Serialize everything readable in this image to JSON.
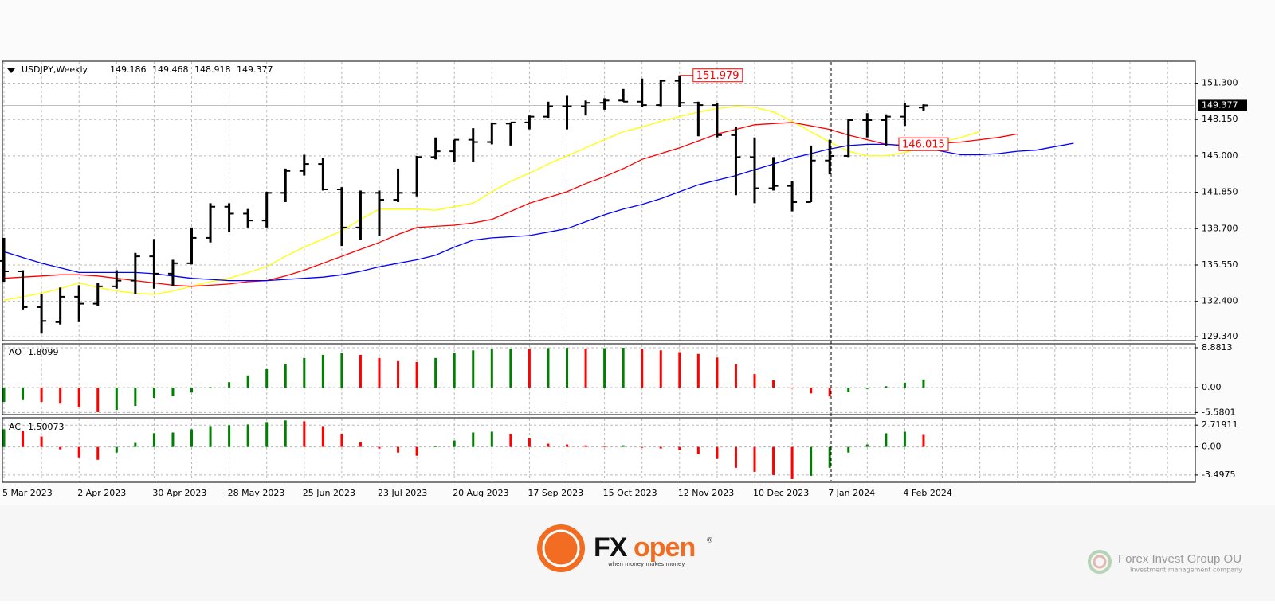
{
  "chart_data": [
    {
      "type": "ohlc",
      "title": "USDJPY,Weekly",
      "categories": [
        "5 Mar 2023",
        null,
        null,
        null,
        "2 Apr 2023",
        null,
        null,
        null,
        "30 Apr 2023",
        null,
        null,
        null,
        "28 May 2023",
        null,
        null,
        null,
        "25 Jun 2023",
        null,
        null,
        null,
        "23 Jul 2023",
        null,
        null,
        null,
        "20 Aug 2023",
        null,
        null,
        null,
        "17 Sep 2023",
        null,
        null,
        null,
        "15 Oct 2023",
        null,
        null,
        null,
        "12 Nov 2023",
        null,
        null,
        null,
        "10 Dec 2023",
        null,
        null,
        null,
        "7 Jan 2024",
        null,
        null,
        null,
        "4 Feb 2024",
        null,
        null,
        null,
        null,
        null,
        null,
        null,
        null,
        null
      ],
      "open": [
        135.9,
        135.0,
        131.9,
        130.6,
        132.8,
        132.2,
        133.7,
        134.2,
        136.3,
        134.8,
        135.7,
        137.9,
        140.6,
        140.0,
        139.4,
        141.8,
        143.7,
        144.3,
        142.1,
        138.8,
        141.8,
        141.2,
        141.8,
        144.9,
        145.4,
        146.4,
        146.2,
        147.8,
        147.9,
        148.4,
        149.3,
        149.3,
        149.6,
        149.8,
        149.7,
        149.4,
        151.5,
        149.6,
        149.4,
        146.8,
        144.9,
        142.2,
        142.4,
        141.0,
        144.6,
        145.0,
        148.1,
        148.1,
        148.4,
        149.186,
        null,
        null,
        null,
        null,
        null,
        null,
        null,
        null
      ],
      "high": [
        137.9,
        135.1,
        133.0,
        133.6,
        133.8,
        134.0,
        135.1,
        136.6,
        137.8,
        136.0,
        138.8,
        140.9,
        140.9,
        140.4,
        141.9,
        143.9,
        145.1,
        144.8,
        142.3,
        142.0,
        142.0,
        143.9,
        145.0,
        146.6,
        146.4,
        147.4,
        147.9,
        147.9,
        148.5,
        149.7,
        150.2,
        149.8,
        150.0,
        150.8,
        151.7,
        151.6,
        151.979,
        149.7,
        149.6,
        147.5,
        146.6,
        144.9,
        142.8,
        145.9,
        146.4,
        148.2,
        148.7,
        148.6,
        149.6,
        149.468,
        null,
        null,
        null,
        null,
        null,
        null,
        null,
        null
      ],
      "low": [
        134.1,
        131.7,
        129.6,
        130.4,
        130.6,
        132.0,
        133.5,
        133.0,
        133.5,
        133.7,
        135.6,
        137.5,
        138.4,
        138.8,
        138.8,
        141.0,
        143.3,
        142.0,
        137.2,
        137.7,
        138.1,
        141.0,
        141.5,
        144.7,
        144.5,
        144.5,
        146.0,
        145.9,
        147.3,
        148.3,
        147.3,
        148.5,
        149.0,
        149.7,
        149.2,
        149.3,
        149.2,
        146.7,
        146.6,
        141.6,
        140.9,
        142.0,
        140.2,
        141.0,
        143.4,
        144.9,
        146.6,
        145.9,
        147.6,
        148.918,
        null,
        null,
        null,
        null,
        null,
        null,
        null,
        null
      ],
      "close": [
        135.0,
        131.9,
        130.7,
        132.8,
        132.2,
        133.7,
        134.2,
        136.3,
        134.8,
        135.7,
        137.9,
        140.6,
        140.0,
        139.4,
        141.8,
        143.7,
        144.3,
        142.1,
        138.8,
        141.8,
        141.2,
        141.8,
        144.9,
        145.4,
        146.4,
        146.2,
        147.8,
        147.9,
        148.4,
        149.3,
        149.3,
        149.6,
        149.8,
        149.7,
        149.4,
        151.5,
        149.6,
        149.4,
        146.8,
        144.9,
        142.2,
        142.4,
        141.0,
        144.6,
        145.0,
        148.1,
        148.1,
        148.4,
        149.3,
        149.377,
        null,
        null,
        null,
        null,
        null,
        null,
        null,
        null
      ],
      "bar_color": "#000000",
      "series": [
        {
          "color": "#ffff00",
          "values": [
            132.5,
            132.8,
            133.1,
            133.5,
            134.0,
            133.6,
            133.3,
            133.1,
            133.0,
            133.3,
            133.7,
            134.1,
            134.4,
            134.9,
            135.4,
            136.3,
            137.1,
            137.8,
            138.5,
            139.5,
            140.4,
            140.4,
            140.4,
            140.3,
            140.6,
            140.9,
            141.9,
            142.8,
            143.5,
            144.3,
            145.0,
            145.7,
            146.4,
            147.1,
            147.5,
            148.0,
            148.4,
            148.8,
            149.1,
            149.3,
            149.2,
            148.8,
            148.0,
            147.1,
            146.2,
            145.4,
            145.0,
            145.0,
            145.3,
            145.7,
            146.2,
            146.6,
            147.1,
            null,
            null,
            null,
            null,
            null
          ]
        },
        {
          "color": "#ff0000",
          "values": [
            134.4,
            134.5,
            134.6,
            134.7,
            134.7,
            134.6,
            134.4,
            134.2,
            134.0,
            133.8,
            133.7,
            133.8,
            133.9,
            134.1,
            134.2,
            134.6,
            135.1,
            135.7,
            136.3,
            136.9,
            137.5,
            138.2,
            138.8,
            138.9,
            139.0,
            139.2,
            139.5,
            140.2,
            140.9,
            141.4,
            141.9,
            142.6,
            143.2,
            143.9,
            144.7,
            145.2,
            145.7,
            146.3,
            146.9,
            147.3,
            147.7,
            147.8,
            147.9,
            147.6,
            147.3,
            146.8,
            146.4,
            146.0,
            145.9,
            146.0,
            146.1,
            146.2,
            146.4,
            146.6,
            146.9,
            null,
            null,
            null
          ]
        },
        {
          "color": "#0000ff",
          "values": [
            136.7,
            136.2,
            135.7,
            135.3,
            134.9,
            134.9,
            134.9,
            134.9,
            134.8,
            134.6,
            134.4,
            134.3,
            134.2,
            134.2,
            134.2,
            134.3,
            134.4,
            134.5,
            134.7,
            135.0,
            135.4,
            135.7,
            136.0,
            136.4,
            137.1,
            137.7,
            137.9,
            138.0,
            138.1,
            138.4,
            138.7,
            139.3,
            139.9,
            140.4,
            140.8,
            141.3,
            141.9,
            142.5,
            142.9,
            143.3,
            143.8,
            144.3,
            144.8,
            145.2,
            145.6,
            145.9,
            146.0,
            146.0,
            145.9,
            145.7,
            145.4,
            145.1,
            145.1,
            145.2,
            145.4,
            145.5,
            145.8,
            146.1
          ]
        }
      ],
      "price_label": 146.015,
      "ylim": [
        129.0,
        153.2
      ],
      "yticks": [
        {
          "value": 151.3,
          "label": "151.300"
        },
        {
          "value": 148.15,
          "label": "148.150"
        },
        {
          "value": 145.0,
          "label": "145.000"
        },
        {
          "value": 141.85,
          "label": "141.850"
        },
        {
          "value": 138.7,
          "label": "138.700"
        },
        {
          "value": 135.55,
          "label": "135.550"
        },
        {
          "value": 132.4,
          "label": "132.400"
        },
        {
          "value": 129.34,
          "label": "129.340"
        }
      ],
      "grid": true
    },
    {
      "type": "bar",
      "title": "AO",
      "values": [
        -3.2,
        -2.8,
        -3.2,
        -3.6,
        -4.4,
        -5.5,
        -5.0,
        -4.1,
        -2.3,
        -1.9,
        -1.1,
        0.1,
        1.2,
        2.7,
        4.1,
        5.2,
        6.6,
        7.3,
        7.7,
        7.3,
        6.6,
        5.9,
        5.7,
        6.6,
        7.7,
        8.3,
        8.6,
        8.7,
        8.6,
        8.8,
        8.85,
        8.7,
        8.8,
        8.88,
        8.7,
        8.3,
        7.9,
        7.5,
        6.7,
        5.2,
        3.0,
        1.6,
        -0.2,
        -1.3,
        -2.0,
        -1.0,
        -0.3,
        0.3,
        1.1,
        1.8099
      ],
      "up_color": "#008000",
      "down_color": "#ff0000",
      "ylim": [
        -6.04,
        9.77
      ],
      "yticks": [
        8.8813,
        {
          "value": 0,
          "label": "0.00"
        },
        -5.5801
      ]
    },
    {
      "type": "bar",
      "title": "AC",
      "values": [
        2.2,
        2.0,
        1.3,
        -0.3,
        -1.3,
        -1.6,
        -0.7,
        0.5,
        1.7,
        1.8,
        2.2,
        2.6,
        2.7,
        2.8,
        3.1,
        3.3,
        3.2,
        2.6,
        1.6,
        0.6,
        -0.2,
        -0.7,
        -1.1,
        0.1,
        0.8,
        1.8,
        1.9,
        1.6,
        1.1,
        0.4,
        0.3,
        0.2,
        0.1,
        0.2,
        -0.1,
        -0.2,
        -0.4,
        -0.9,
        -1.5,
        -2.6,
        -3.1,
        -3.5,
        -4.0,
        -3.6,
        -2.6,
        -0.7,
        0.3,
        1.7,
        1.9,
        1.50073
      ],
      "up_color": "#008000",
      "down_color": "#ff0000",
      "ylim": [
        -4.4,
        3.63
      ],
      "yticks": [
        2.71911,
        {
          "value": 0,
          "label": "0.00"
        },
        -3.4975
      ]
    }
  ],
  "branding": {
    "logo": "FX",
    "logo_accent": "open",
    "registered": "®",
    "tagline": "when money makes money",
    "company": "Forex Invest Group OU",
    "company_subtitle": "Investment management company"
  }
}
